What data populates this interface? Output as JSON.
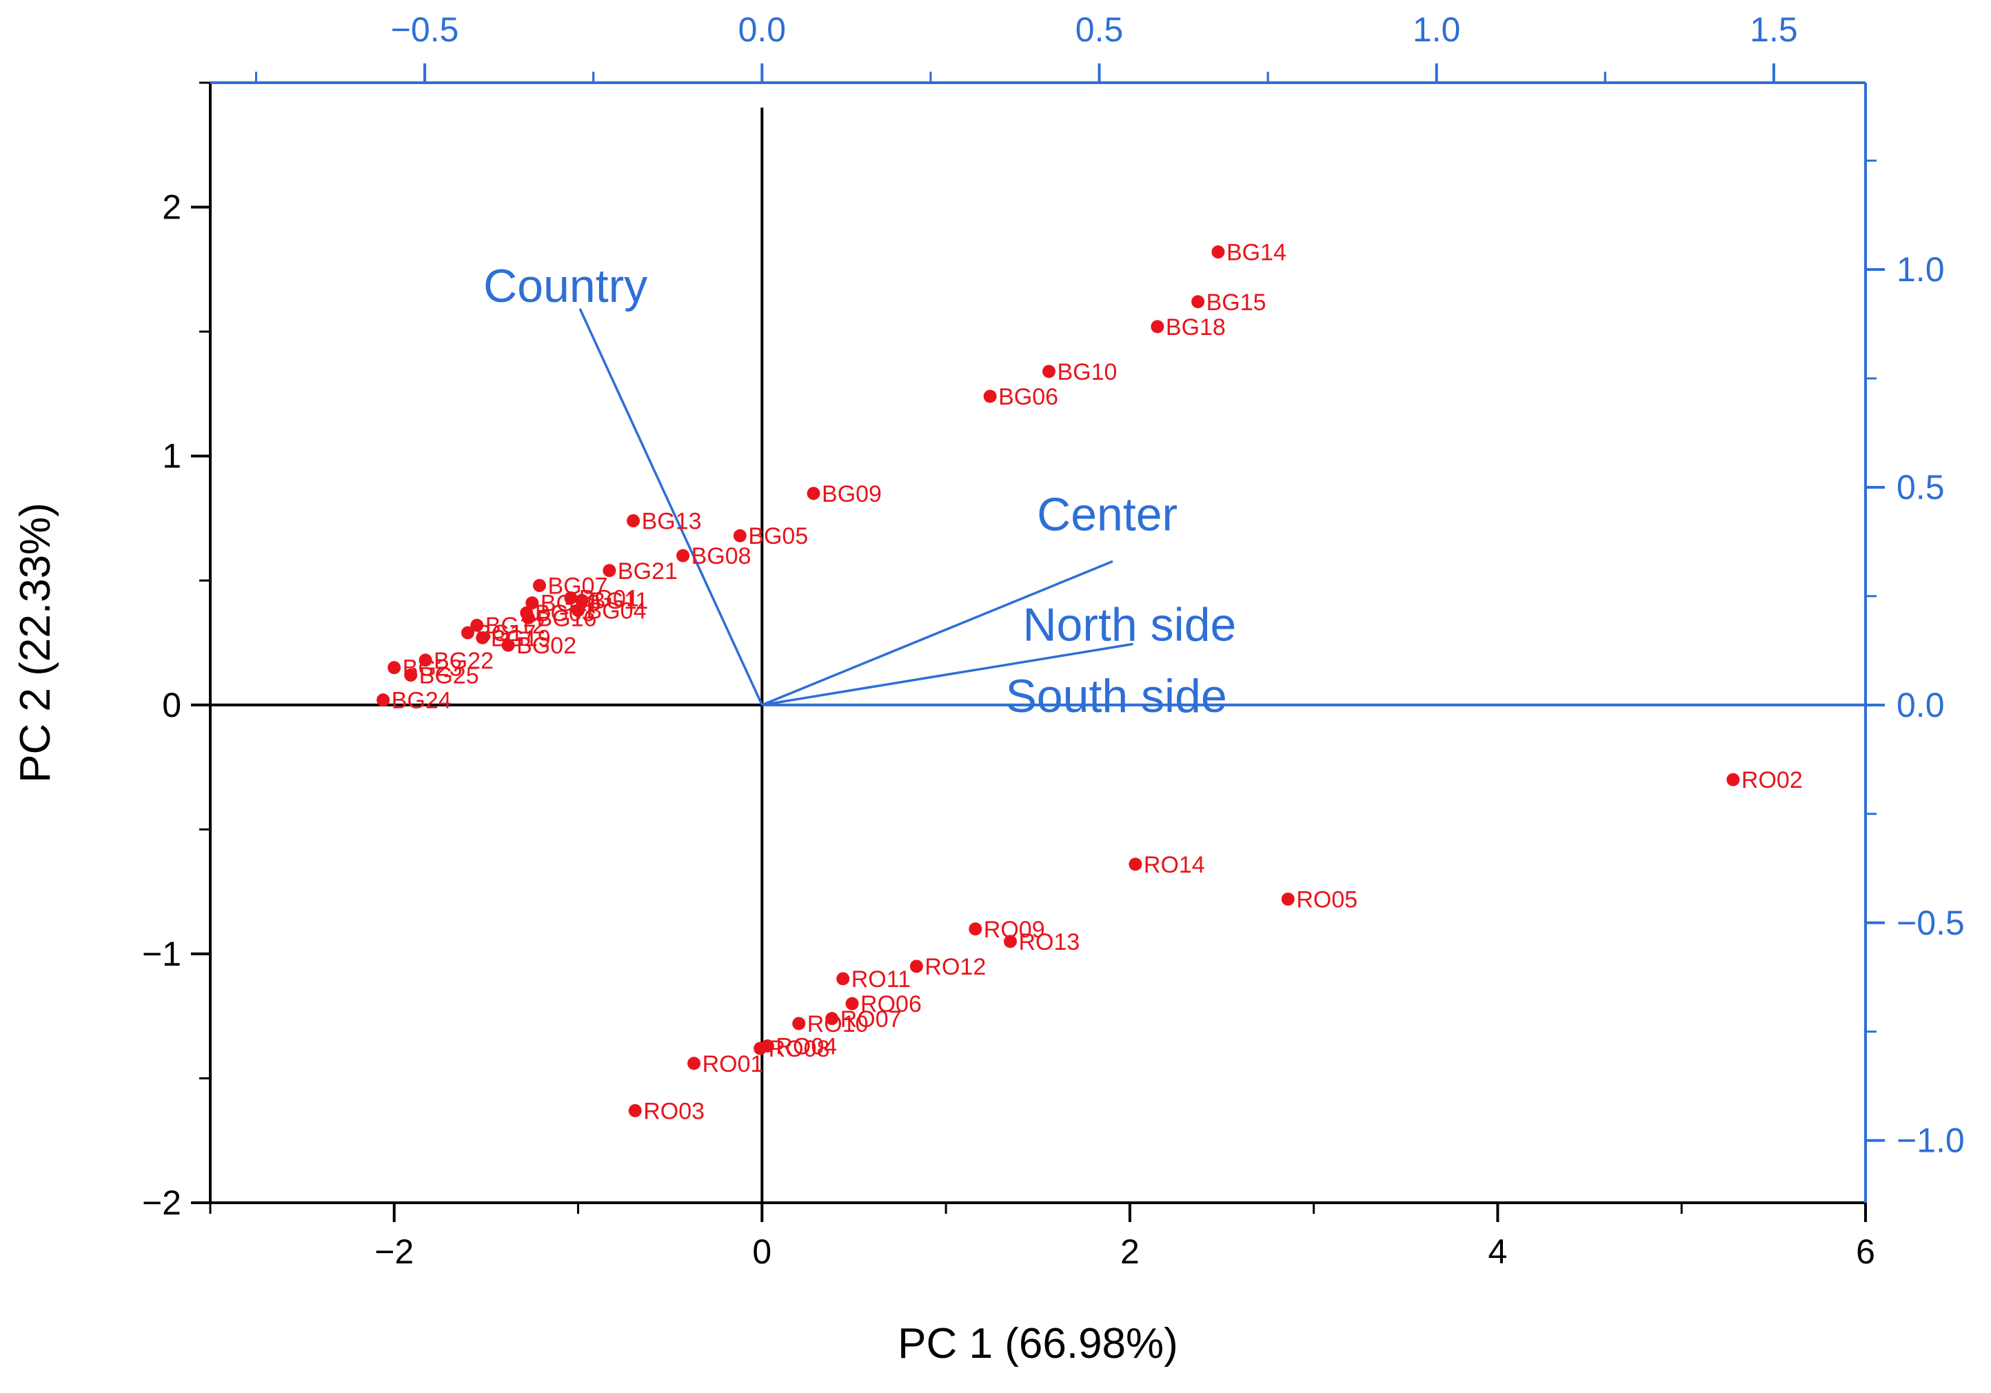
{
  "chart_data": {
    "type": "scatter",
    "subtype": "biplot",
    "xlabel": "PC 1 (66.98%)",
    "ylabel": "PC 2 (22.33%)",
    "xlim": [
      -3.0,
      6.0
    ],
    "ylim": [
      -2.0,
      2.5
    ],
    "x_ticks": [
      -2,
      0,
      2,
      4,
      6
    ],
    "y_ticks": [
      -2,
      -1,
      0,
      1,
      2
    ],
    "x_tick_labels": [
      "−2",
      "0",
      "2",
      "4",
      "6"
    ],
    "y_tick_labels": [
      "−2",
      "−1",
      "0",
      "1",
      "2"
    ],
    "top_axis": {
      "lim": [
        -0.818,
        1.636
      ],
      "ticks": [
        -0.5,
        0.0,
        0.5,
        1.0,
        1.5
      ],
      "tick_labels": [
        "−0.5",
        "0.0",
        "0.5",
        "1.0",
        "1.5"
      ]
    },
    "right_axis": {
      "lim": [
        -1.143,
        1.429
      ],
      "ticks": [
        -1.0,
        -0.5,
        0.0,
        0.5,
        1.0
      ],
      "tick_labels": [
        "−1.0",
        "−0.5",
        "0.0",
        "0.5",
        "1.0"
      ]
    },
    "colors": {
      "points": "#e8141c",
      "loadings": "#2e6fd6",
      "axes": "#000000"
    },
    "scores": [
      {
        "label": "BG14",
        "x": 2.48,
        "y": 1.82
      },
      {
        "label": "BG15",
        "x": 2.37,
        "y": 1.62
      },
      {
        "label": "BG18",
        "x": 2.15,
        "y": 1.52
      },
      {
        "label": "BG10",
        "x": 1.56,
        "y": 1.34
      },
      {
        "label": "BG06",
        "x": 1.24,
        "y": 1.24
      },
      {
        "label": "BG09",
        "x": 0.28,
        "y": 0.85
      },
      {
        "label": "BG13",
        "x": -0.7,
        "y": 0.74
      },
      {
        "label": "BG05",
        "x": -0.12,
        "y": 0.68
      },
      {
        "label": "BG08",
        "x": -0.43,
        "y": 0.6
      },
      {
        "label": "BG21",
        "x": -0.83,
        "y": 0.54
      },
      {
        "label": "BG07",
        "x": -1.21,
        "y": 0.48
      },
      {
        "label": "BG01",
        "x": -1.04,
        "y": 0.43
      },
      {
        "label": "BG11",
        "x": -0.98,
        "y": 0.42
      },
      {
        "label": "BG20",
        "x": -1.25,
        "y": 0.41
      },
      {
        "label": "BG04",
        "x": -1.0,
        "y": 0.38
      },
      {
        "label": "BG03",
        "x": -1.28,
        "y": 0.37
      },
      {
        "label": "BG16",
        "x": -1.27,
        "y": 0.35
      },
      {
        "label": "BG12",
        "x": -1.55,
        "y": 0.32
      },
      {
        "label": "BG17",
        "x": -1.6,
        "y": 0.29
      },
      {
        "label": "BG19",
        "x": -1.52,
        "y": 0.27
      },
      {
        "label": "BG02",
        "x": -1.38,
        "y": 0.24
      },
      {
        "label": "BG22",
        "x": -1.83,
        "y": 0.18
      },
      {
        "label": "BG23",
        "x": -2.0,
        "y": 0.15
      },
      {
        "label": "BG25",
        "x": -1.91,
        "y": 0.12
      },
      {
        "label": "BG24",
        "x": -2.06,
        "y": 0.02
      },
      {
        "label": "RO02",
        "x": 5.28,
        "y": -0.3
      },
      {
        "label": "RO14",
        "x": 2.03,
        "y": -0.64
      },
      {
        "label": "RO05",
        "x": 2.86,
        "y": -0.78
      },
      {
        "label": "RO09",
        "x": 1.16,
        "y": -0.9
      },
      {
        "label": "RO13",
        "x": 1.35,
        "y": -0.95
      },
      {
        "label": "RO12",
        "x": 0.84,
        "y": -1.05
      },
      {
        "label": "RO11",
        "x": 0.44,
        "y": -1.1
      },
      {
        "label": "RO06",
        "x": 0.49,
        "y": -1.2
      },
      {
        "label": "RO07",
        "x": 0.38,
        "y": -1.26
      },
      {
        "label": "RO10",
        "x": 0.2,
        "y": -1.28
      },
      {
        "label": "RO04",
        "x": 0.03,
        "y": -1.37
      },
      {
        "label": "RO08",
        "x": -0.01,
        "y": -1.38
      },
      {
        "label": "RO01",
        "x": -0.37,
        "y": -1.44
      },
      {
        "label": "RO03",
        "x": -0.69,
        "y": -1.63
      }
    ],
    "loadings": [
      {
        "label": "Country",
        "x": -0.27,
        "y": 0.91
      },
      {
        "label": "Center",
        "x": 0.52,
        "y": 0.33
      },
      {
        "label": "North side",
        "x": 0.55,
        "y": 0.14
      },
      {
        "label": "South side",
        "x": 0.55,
        "y": 0.0
      }
    ]
  }
}
